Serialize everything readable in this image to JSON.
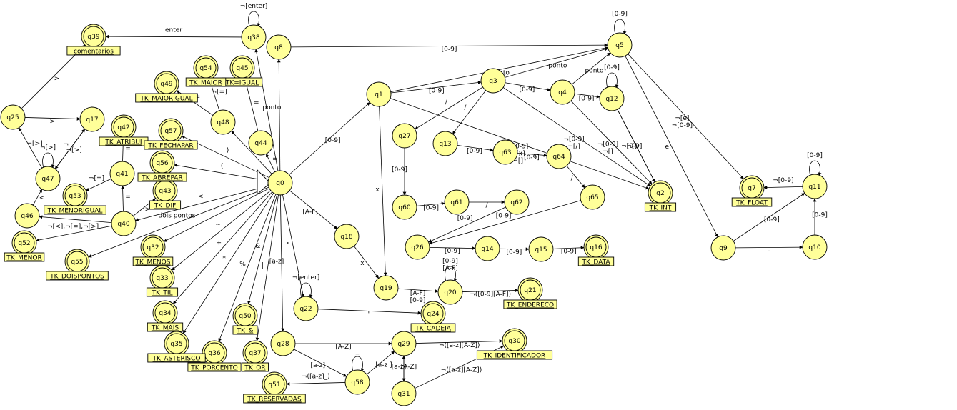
{
  "states": [
    {
      "id": "q0",
      "label": "q0",
      "accept": false
    },
    {
      "id": "q1",
      "label": "q1",
      "accept": false
    },
    {
      "id": "q2",
      "label": "q2",
      "accept": true
    },
    {
      "id": "q3",
      "label": "q3",
      "accept": false
    },
    {
      "id": "q4",
      "label": "q4",
      "accept": false
    },
    {
      "id": "q5",
      "label": "q5",
      "accept": false
    },
    {
      "id": "q7",
      "label": "q7",
      "accept": true
    },
    {
      "id": "q8",
      "label": "q8",
      "accept": false
    },
    {
      "id": "q9",
      "label": "q9",
      "accept": false
    },
    {
      "id": "q10",
      "label": "q10",
      "accept": false
    },
    {
      "id": "q11",
      "label": "q11",
      "accept": false
    },
    {
      "id": "q12",
      "label": "q12",
      "accept": false
    },
    {
      "id": "q13",
      "label": "q13",
      "accept": false
    },
    {
      "id": "q14",
      "label": "q14",
      "accept": false
    },
    {
      "id": "q15",
      "label": "q15",
      "accept": false
    },
    {
      "id": "q16",
      "label": "q16",
      "accept": true
    },
    {
      "id": "q17",
      "label": "q17",
      "accept": false
    },
    {
      "id": "q18",
      "label": "q18",
      "accept": false
    },
    {
      "id": "q19",
      "label": "q19",
      "accept": false
    },
    {
      "id": "q20",
      "label": "q20",
      "accept": false
    },
    {
      "id": "q21",
      "label": "q21",
      "accept": true
    },
    {
      "id": "q22",
      "label": "q22",
      "accept": false
    },
    {
      "id": "q24",
      "label": "q24",
      "accept": true
    },
    {
      "id": "q25",
      "label": "q25",
      "accept": false
    },
    {
      "id": "q26",
      "label": "q26",
      "accept": false
    },
    {
      "id": "q27",
      "label": "q27",
      "accept": false
    },
    {
      "id": "q28",
      "label": "q28",
      "accept": false
    },
    {
      "id": "q29",
      "label": "q29",
      "accept": false
    },
    {
      "id": "q30",
      "label": "q30",
      "accept": true
    },
    {
      "id": "q31",
      "label": "q31",
      "accept": false
    },
    {
      "id": "q32",
      "label": "q32",
      "accept": true
    },
    {
      "id": "q33",
      "label": "q33",
      "accept": true
    },
    {
      "id": "q34",
      "label": "q34",
      "accept": true
    },
    {
      "id": "q35",
      "label": "q35",
      "accept": true
    },
    {
      "id": "q36",
      "label": "q36",
      "accept": true
    },
    {
      "id": "q37",
      "label": "q37",
      "accept": true
    },
    {
      "id": "q38",
      "label": "q38",
      "accept": false
    },
    {
      "id": "q39",
      "label": "q39",
      "accept": true
    },
    {
      "id": "q40",
      "label": "q40",
      "accept": false
    },
    {
      "id": "q41",
      "label": "q41",
      "accept": false
    },
    {
      "id": "q42",
      "label": "q42",
      "accept": true
    },
    {
      "id": "q43",
      "label": "q43",
      "accept": true
    },
    {
      "id": "q44",
      "label": "q44",
      "accept": false
    },
    {
      "id": "q45",
      "label": "q45",
      "accept": true
    },
    {
      "id": "q46",
      "label": "q46",
      "accept": false
    },
    {
      "id": "q47",
      "label": "q47",
      "accept": false
    },
    {
      "id": "q48",
      "label": "q48",
      "accept": false
    },
    {
      "id": "q49",
      "label": "q49",
      "accept": true
    },
    {
      "id": "q50",
      "label": "q50",
      "accept": true
    },
    {
      "id": "q51",
      "label": "q51",
      "accept": true
    },
    {
      "id": "q52",
      "label": "q52",
      "accept": true
    },
    {
      "id": "q53",
      "label": "q53",
      "accept": true
    },
    {
      "id": "q54",
      "label": "q54",
      "accept": true
    },
    {
      "id": "q55",
      "label": "q55",
      "accept": true
    },
    {
      "id": "q56",
      "label": "q56",
      "accept": true
    },
    {
      "id": "q57",
      "label": "q57",
      "accept": true
    },
    {
      "id": "q58",
      "label": "q58",
      "accept": false
    },
    {
      "id": "q60",
      "label": "q60",
      "accept": false
    },
    {
      "id": "q61",
      "label": "q61",
      "accept": false
    },
    {
      "id": "q62",
      "label": "q62",
      "accept": false
    },
    {
      "id": "q63",
      "label": "q63",
      "accept": false
    },
    {
      "id": "q64",
      "label": "q64",
      "accept": false
    },
    {
      "id": "q65",
      "label": "q65",
      "accept": false
    }
  ],
  "tokens": [
    {
      "state": "q2",
      "text": "TK_INT"
    },
    {
      "state": "q7",
      "text": "TK_FLOAT"
    },
    {
      "state": "q16",
      "text": "TK_DATA"
    },
    {
      "state": "q21",
      "text": "TK_ENDERECO"
    },
    {
      "state": "q24",
      "text": "TK_CADEIA"
    },
    {
      "state": "q30",
      "text": "TK_IDENTIFICADOR"
    },
    {
      "state": "q32",
      "text": "TK_MENOS"
    },
    {
      "state": "q33",
      "text": "TK_TIL"
    },
    {
      "state": "q34",
      "text": "TK_MAIS"
    },
    {
      "state": "q35",
      "text": "TK_ASTERISCO"
    },
    {
      "state": "q36",
      "text": "TK_PORCENTO"
    },
    {
      "state": "q37",
      "text": "TK_OR"
    },
    {
      "state": "q39",
      "text": "comentarios"
    },
    {
      "state": "q42",
      "text": "TK_ATRIBUI"
    },
    {
      "state": "q43",
      "text": "TK_DIF"
    },
    {
      "state": "q45",
      "text": "TK=IGUAL"
    },
    {
      "state": "q49",
      "text": "TK_MAIORIGUAL"
    },
    {
      "state": "q50",
      "text": "TK_&"
    },
    {
      "state": "q51",
      "text": "TK_RESERVADAS"
    },
    {
      "state": "q52",
      "text": "TK_MENOR"
    },
    {
      "state": "q53",
      "text": "TK_MENORIGUAL"
    },
    {
      "state": "q54",
      "text": "TK_MAIOR"
    },
    {
      "state": "q55",
      "text": "TK_DOISPONTOS"
    },
    {
      "state": "q56",
      "text": "TK_ABREPAR"
    },
    {
      "state": "q57",
      "text": "TK_FECHAPAR"
    }
  ],
  "transitions": [
    {
      "from": "q0",
      "to": "q1",
      "label": "[0-9]"
    },
    {
      "from": "q0",
      "to": "q8",
      "label": ""
    },
    {
      "from": "q8",
      "to": "q5",
      "label": "[0-9]"
    },
    {
      "from": "q0",
      "to": "q38",
      "label": "ponto"
    },
    {
      "from": "q38",
      "to": "q38",
      "label": "¬[enter]",
      "loop": true
    },
    {
      "from": "q38",
      "to": "q39",
      "label": "enter"
    },
    {
      "from": "q0",
      "to": "q44",
      "label": "="
    },
    {
      "from": "q44",
      "to": "q45",
      "label": "="
    },
    {
      "from": "q0",
      "to": "q48",
      "label": ">"
    },
    {
      "from": "q48",
      "to": "q54",
      "label": "¬[=]"
    },
    {
      "from": "q48",
      "to": "q49",
      "label": "="
    },
    {
      "from": "q0",
      "to": "q57",
      "label": ")"
    },
    {
      "from": "q0",
      "to": "q56",
      "label": "("
    },
    {
      "from": "q0",
      "to": "q40",
      "label": "<"
    },
    {
      "from": "q40",
      "to": "q41",
      "label": "="
    },
    {
      "from": "q41",
      "to": "q42",
      "label": "="
    },
    {
      "from": "q41",
      "to": "q53",
      "label": "¬[=]"
    },
    {
      "from": "q40",
      "to": "q43",
      "label": ">"
    },
    {
      "from": "q40",
      "to": "q46",
      "label": "<"
    },
    {
      "from": "q40",
      "to": "q52",
      "label": "¬[<],¬[=],¬[>]"
    },
    {
      "from": "q46",
      "to": "q47",
      "label": "<"
    },
    {
      "from": "q47",
      "to": "q47",
      "label": "¬[>]",
      "loop": true
    },
    {
      "from": "q47",
      "to": "q25",
      "label": "¬[>]"
    },
    {
      "from": "q25",
      "to": "q17",
      "label": ">"
    },
    {
      "from": "q17",
      "to": "q47",
      "label": "¬"
    },
    {
      "from": "q47",
      "to": "q17",
      "label": "¬[>]"
    },
    {
      "from": "q25",
      "to": "q39",
      "label": ">"
    },
    {
      "from": "q0",
      "to": "q55",
      "label": "dois pontos"
    },
    {
      "from": "q0",
      "to": "q32",
      "label": "-"
    },
    {
      "from": "q0",
      "to": "q33",
      "label": "~"
    },
    {
      "from": "q0",
      "to": "q34",
      "label": "+"
    },
    {
      "from": "q0",
      "to": "q35",
      "label": "*"
    },
    {
      "from": "q0",
      "to": "q36",
      "label": "%"
    },
    {
      "from": "q0",
      "to": "q50",
      "label": "&"
    },
    {
      "from": "q0",
      "to": "q37",
      "label": "|"
    },
    {
      "from": "q0",
      "to": "q28",
      "label": "[a-z]"
    },
    {
      "from": "q0",
      "to": "q22",
      "label": "\""
    },
    {
      "from": "q22",
      "to": "q22",
      "label": "¬[enter]",
      "loop": true
    },
    {
      "from": "q22",
      "to": "q24",
      "label": "\""
    },
    {
      "from": "q0",
      "to": "q18",
      "label": "[A-F]"
    },
    {
      "from": "q18",
      "to": "q19",
      "label": "x"
    },
    {
      "from": "q19",
      "to": "q20",
      "label": "[A-F]\n[0-9]"
    },
    {
      "from": "q20",
      "to": "q20",
      "label": "[0-9]\n[A-F]",
      "loop": true
    },
    {
      "from": "q20",
      "to": "q21",
      "label": "¬([0-9][A-F])"
    },
    {
      "from": "q1",
      "to": "q19",
      "label": "x"
    },
    {
      "from": "q1",
      "to": "q3",
      "label": "[0-9]"
    },
    {
      "from": "q1",
      "to": "q5",
      "label": "ponto"
    },
    {
      "from": "q1",
      "to": "q2",
      "label": "¬[0-9]\n¬[x]\n¬[]"
    },
    {
      "from": "q3",
      "to": "q4",
      "label": "[0-9]"
    },
    {
      "from": "q3",
      "to": "q5",
      "label": "ponto"
    },
    {
      "from": "q3",
      "to": "q27",
      "label": "/"
    },
    {
      "from": "q3",
      "to": "q13",
      "label": "/"
    },
    {
      "from": "q3",
      "to": "q2",
      "label": "¬[0-9]\n¬[/]"
    },
    {
      "from": "q4",
      "to": "q12",
      "label": "[0-9]"
    },
    {
      "from": "q4",
      "to": "q5",
      "label": "ponto"
    },
    {
      "from": "q4",
      "to": "q2",
      "label": "¬[0-9]\n¬[]"
    },
    {
      "from": "q12",
      "to": "q12",
      "label": "[0-9]",
      "loop": true
    },
    {
      "from": "q12",
      "to": "q2",
      "label": "¬[0-9]"
    },
    {
      "from": "q12",
      "to": "q2",
      "label": "¬[]"
    },
    {
      "from": "q5",
      "to": "q5",
      "label": "[0-9]",
      "loop": true
    },
    {
      "from": "q5",
      "to": "q7",
      "label": "¬[e]\n¬[0-9]"
    },
    {
      "from": "q5",
      "to": "q9",
      "label": "e"
    },
    {
      "from": "q9",
      "to": "q10",
      "label": "-"
    },
    {
      "from": "q9",
      "to": "q11",
      "label": "[0-9]"
    },
    {
      "from": "q10",
      "to": "q11",
      "label": "[0-9]"
    },
    {
      "from": "q11",
      "to": "q11",
      "label": "[0-9]",
      "loop": true
    },
    {
      "from": "q11",
      "to": "q7",
      "label": "¬[0-9]"
    },
    {
      "from": "q27",
      "to": "q60",
      "label": "[0-9]"
    },
    {
      "from": "q60",
      "to": "q61",
      "label": "[0-9]"
    },
    {
      "from": "q61",
      "to": "q62",
      "label": "/"
    },
    {
      "from": "q62",
      "to": "q26",
      "label": "[0-9]"
    },
    {
      "from": "q13",
      "to": "q63",
      "label": "[0-9]"
    },
    {
      "from": "q63",
      "to": "q64",
      "label": "[0-9]"
    },
    {
      "from": "q64",
      "to": "q65",
      "label": "/"
    },
    {
      "from": "q65",
      "to": "q26",
      "label": "[0-9]"
    },
    {
      "from": "q26",
      "to": "q14",
      "label": "[0-9]"
    },
    {
      "from": "q14",
      "to": "q15",
      "label": "[0-9]"
    },
    {
      "from": "q15",
      "to": "q16",
      "label": "[0-9]"
    },
    {
      "from": "q28",
      "to": "q29",
      "label": "[A-Z]"
    },
    {
      "from": "q28",
      "to": "q58",
      "label": "[a-z]"
    },
    {
      "from": "q58",
      "to": "q29",
      "label": "[a-z ]"
    },
    {
      "from": "q58",
      "to": "q58",
      "label": "_",
      "loop": true
    },
    {
      "from": "q58",
      "to": "q51",
      "label": "¬([a-z]_)"
    },
    {
      "from": "q29",
      "to": "q30",
      "label": "¬([a-z][A-Z])"
    },
    {
      "from": "q29",
      "to": "q31",
      "label": "[a-z]"
    },
    {
      "from": "q31",
      "to": "q29",
      "label": "[A-Z]"
    },
    {
      "from": "q31",
      "to": "q30",
      "label": "¬([a-z][A-Z])"
    }
  ]
}
